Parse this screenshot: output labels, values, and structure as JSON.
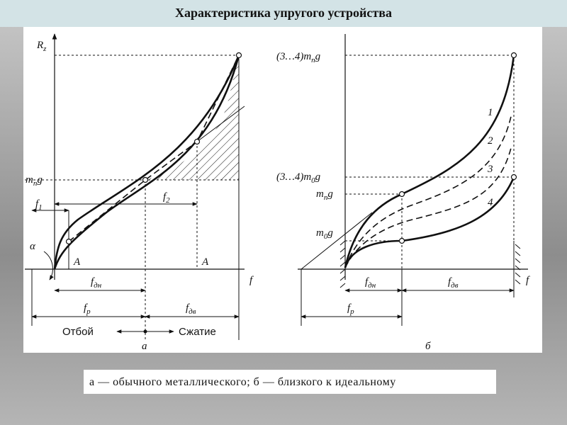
{
  "header": {
    "title": "Характеристика упругого устройства"
  },
  "left": {
    "axis_y": {
      "main": "R",
      "sub": "z"
    },
    "axis_x": "f",
    "level": {
      "main": "m",
      "sub": "п",
      "tail": "g"
    },
    "f1": {
      "main": "f",
      "sub": "1"
    },
    "f2": {
      "main": "f",
      "sub": "2"
    },
    "alpha": "α",
    "point_a1": "A",
    "point_a2": "A",
    "f_dn": {
      "main": "f",
      "sub": "дн"
    },
    "f_dv": {
      "main": "f",
      "sub": "дв"
    },
    "f_r": {
      "main": "f",
      "sub": "р"
    },
    "rebound": "Отбой",
    "compression": "Сжатие",
    "label": "а"
  },
  "right": {
    "level_top": {
      "main": "(3…4)m",
      "sub": "п",
      "tail": "g"
    },
    "level_mid": {
      "main": "(3…4)m",
      "sub": "0",
      "tail": "g"
    },
    "level_mn": {
      "main": "m",
      "sub": "п",
      "tail": "g"
    },
    "level_m0": {
      "main": "m",
      "sub": "0",
      "tail": "g"
    },
    "curves": [
      "1",
      "2",
      "3",
      "4"
    ],
    "axis_x": "f",
    "f_dn": {
      "main": "f",
      "sub": "дн"
    },
    "f_dv": {
      "main": "f",
      "sub": "дв"
    },
    "f_r": {
      "main": "f",
      "sub": "р"
    },
    "label": "б"
  },
  "caption": "а — обычного металлического; б — близкого к идеальному"
}
